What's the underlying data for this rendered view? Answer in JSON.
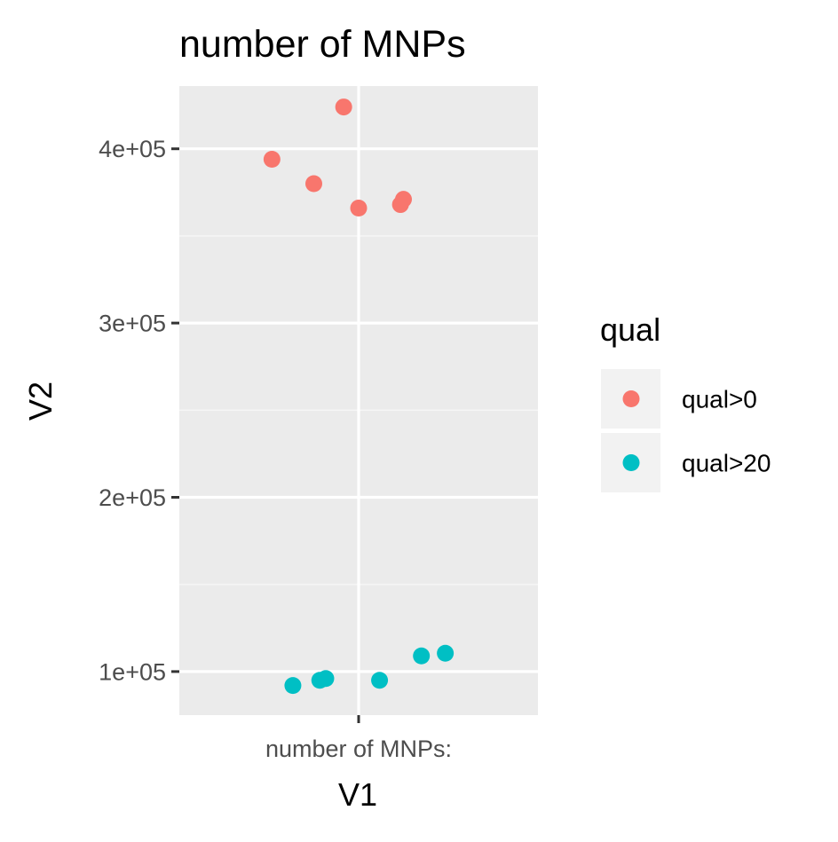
{
  "chart_data": {
    "type": "scatter",
    "title": "number of MNPs",
    "xlabel": "V1",
    "ylabel": "V2",
    "x_categories": [
      "number of MNPs:"
    ],
    "ylim": [
      75000,
      436000
    ],
    "y_ticks": [
      100000,
      200000,
      300000,
      400000
    ],
    "y_tick_labels": [
      "1e+05",
      "2e+05",
      "3e+05",
      "4e+05"
    ],
    "grid": true,
    "legend": {
      "title": "qual",
      "position": "right",
      "entries": [
        "qual>0",
        "qual>20"
      ]
    },
    "series": [
      {
        "name": "qual>0",
        "color": "#F8766D",
        "points": [
          {
            "x": "number of MNPs:",
            "jitter": -0.29,
            "y": 394000
          },
          {
            "x": "number of MNPs:",
            "jitter": -0.15,
            "y": 380000
          },
          {
            "x": "number of MNPs:",
            "jitter": -0.05,
            "y": 424000
          },
          {
            "x": "number of MNPs:",
            "jitter": 0.0,
            "y": 366000
          },
          {
            "x": "number of MNPs:",
            "jitter": 0.14,
            "y": 368000
          },
          {
            "x": "number of MNPs:",
            "jitter": 0.15,
            "y": 371000
          }
        ]
      },
      {
        "name": "qual>20",
        "color": "#00BFC4",
        "points": [
          {
            "x": "number of MNPs:",
            "jitter": -0.22,
            "y": 92000
          },
          {
            "x": "number of MNPs:",
            "jitter": -0.13,
            "y": 95000
          },
          {
            "x": "number of MNPs:",
            "jitter": -0.11,
            "y": 96000
          },
          {
            "x": "number of MNPs:",
            "jitter": 0.07,
            "y": 95000
          },
          {
            "x": "number of MNPs:",
            "jitter": 0.21,
            "y": 109000
          },
          {
            "x": "number of MNPs:",
            "jitter": 0.29,
            "y": 110500
          }
        ]
      }
    ],
    "colors": {
      "panel_background": "#EBEBEB",
      "grid_major": "#FFFFFF",
      "grid_minor": "#F5F5F5",
      "legend_key_background": "#F2F2F2",
      "tick_color": "#333333"
    }
  }
}
